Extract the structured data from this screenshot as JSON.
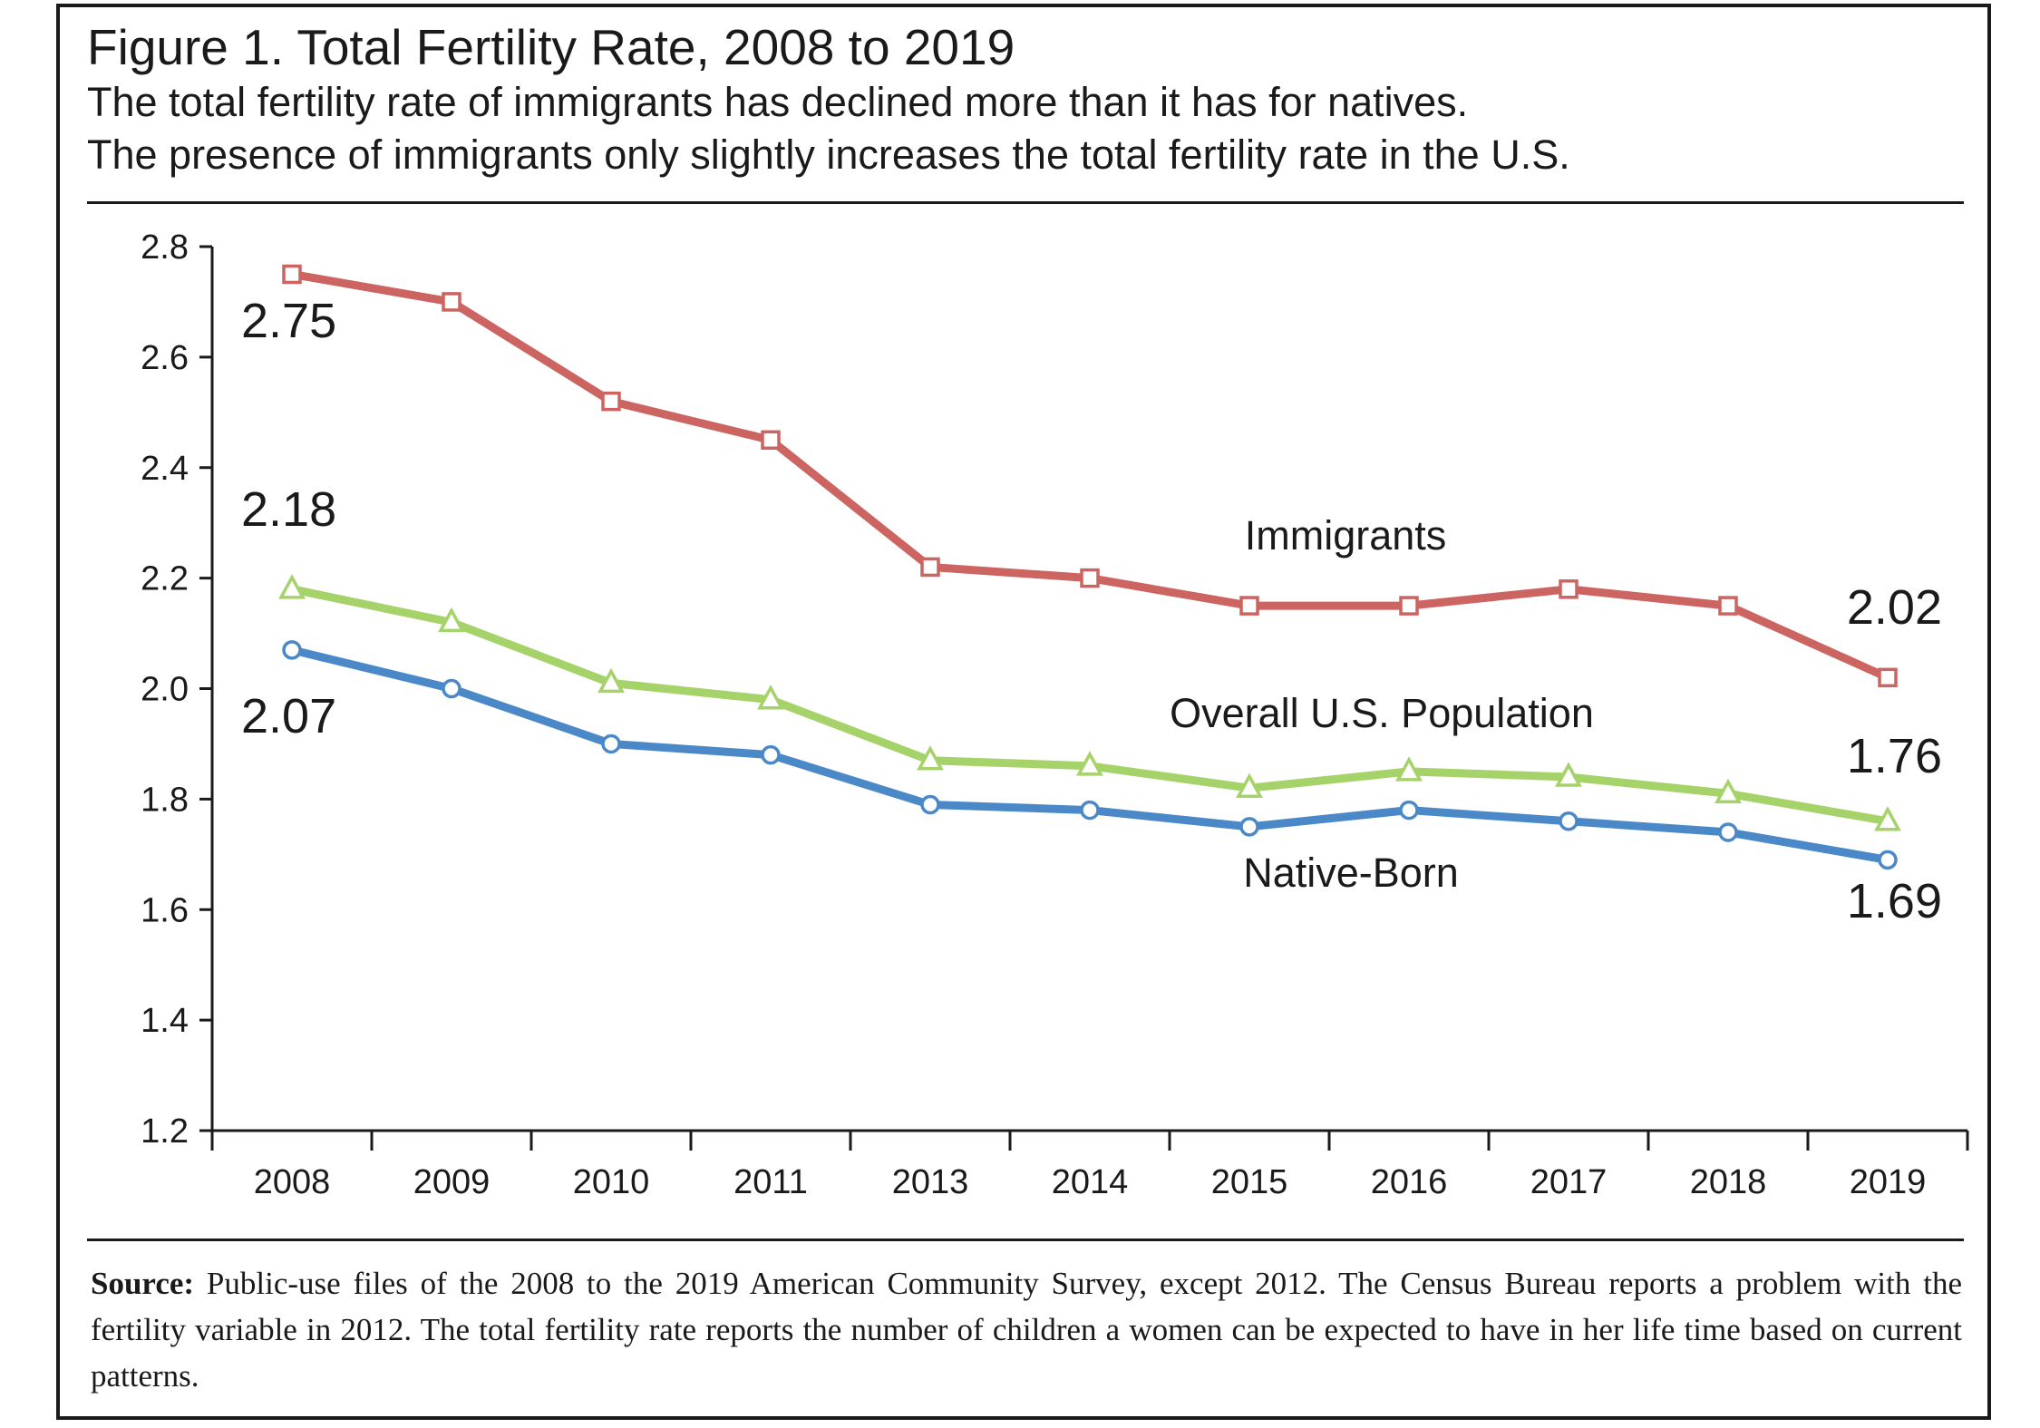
{
  "figure": {
    "title": "Figure 1. Total Fertility Rate, 2008 to 2019",
    "subtitle_line1": "The total fertility rate of immigrants has declined more than it has for natives.",
    "subtitle_line2": "The presence of immigrants only slightly increases the total fertility rate in the U.S."
  },
  "source": {
    "label": "Source:",
    "text": " Public-use files of the 2008 to the 2019 American Community Survey, except 2012. The Census Bureau reports a problem with the fertility variable in 2012. The total fertility rate reports the number of children a women can be expected to have in her life time based on current patterns."
  },
  "chart_data": {
    "type": "line",
    "categories": [
      "2008",
      "2009",
      "2010",
      "2011",
      "2013",
      "2014",
      "2015",
      "2016",
      "2017",
      "2018",
      "2019"
    ],
    "ylim": [
      1.2,
      2.8
    ],
    "yticks": [
      "1.2",
      "1.4",
      "1.6",
      "1.8",
      "2.0",
      "2.2",
      "2.4",
      "2.6",
      "2.8"
    ],
    "grid": false,
    "series": [
      {
        "name": "Immigrants",
        "color": "#cc6461",
        "marker": "square",
        "values": [
          2.75,
          2.7,
          2.52,
          2.45,
          2.22,
          2.2,
          2.15,
          2.15,
          2.18,
          2.15,
          2.02
        ],
        "start_label": "2.75",
        "end_label": "2.02"
      },
      {
        "name": "Overall U.S. Population",
        "color": "#a6d26a",
        "marker": "triangle",
        "values": [
          2.18,
          2.12,
          2.01,
          1.98,
          1.87,
          1.86,
          1.82,
          1.85,
          1.84,
          1.81,
          1.76
        ],
        "start_label": "2.18",
        "end_label": "1.76"
      },
      {
        "name": "Native-Born",
        "color": "#4a88c7",
        "marker": "circle",
        "values": [
          2.07,
          2.0,
          1.9,
          1.88,
          1.79,
          1.78,
          1.75,
          1.78,
          1.76,
          1.74,
          1.69
        ],
        "start_label": "2.07",
        "end_label": "1.69"
      }
    ]
  }
}
